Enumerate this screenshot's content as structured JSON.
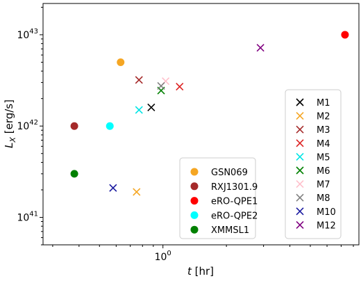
{
  "chart_data": {
    "type": "scatter",
    "title": "",
    "xlabel": "t [hr]",
    "ylabel": "L_X [erg/s]",
    "xscale": "log",
    "yscale": "log",
    "xlim": [
      0.27,
      8.5
    ],
    "ylim": [
      5e+40,
      2.2e+43
    ],
    "x_ticks": [
      {
        "value": 1,
        "label": "10^0"
      }
    ],
    "y_ticks": [
      {
        "value": 1e+41,
        "label": "10^41"
      },
      {
        "value": 1e+42,
        "label": "10^42"
      },
      {
        "value": 1e+43,
        "label": "10^43"
      }
    ],
    "grid": false,
    "observed_legend_placement": "lower-center",
    "model_legend_placement": "right",
    "series": [
      {
        "name": "GSN069",
        "marker": "circle",
        "color": "#f5a623",
        "x": [
          0.63
        ],
        "y": [
          5e+42
        ]
      },
      {
        "name": "RXJ1301.9",
        "marker": "circle",
        "color": "#a52a2a",
        "x": [
          0.38
        ],
        "y": [
          1e+42
        ]
      },
      {
        "name": "eRO-QPE1",
        "marker": "circle",
        "color": "#ff0000",
        "x": [
          7.3
        ],
        "y": [
          1e+43
        ]
      },
      {
        "name": "eRO-QPE2",
        "marker": "circle",
        "color": "#00ffff",
        "x": [
          0.56
        ],
        "y": [
          1e+42
        ]
      },
      {
        "name": "XMMSL1",
        "marker": "circle",
        "color": "#008000",
        "x": [
          0.38
        ],
        "y": [
          3e+41
        ]
      },
      {
        "name": "M1",
        "marker": "x",
        "color": "#000000",
        "x": [
          0.88
        ],
        "y": [
          1.6e+42
        ]
      },
      {
        "name": "M2",
        "marker": "x",
        "color": "#f5a623",
        "x": [
          0.75
        ],
        "y": [
          1.9e+41
        ]
      },
      {
        "name": "M3",
        "marker": "x",
        "color": "#a52a2a",
        "x": [
          0.77
        ],
        "y": [
          3.2e+42
        ]
      },
      {
        "name": "M4",
        "marker": "x",
        "color": "#dd2222",
        "x": [
          1.2
        ],
        "y": [
          2.7e+42
        ]
      },
      {
        "name": "M5",
        "marker": "x",
        "color": "#00e5e5",
        "x": [
          0.77
        ],
        "y": [
          1.5e+42
        ]
      },
      {
        "name": "M6",
        "marker": "x",
        "color": "#008000",
        "x": [
          0.98
        ],
        "y": [
          2.45e+42
        ]
      },
      {
        "name": "M7",
        "marker": "x",
        "color": "#ffc0cb",
        "x": [
          1.03
        ],
        "y": [
          3.1e+42
        ]
      },
      {
        "name": "M8",
        "marker": "x",
        "color": "#808080",
        "x": [
          0.98
        ],
        "y": [
          2.75e+42
        ]
      },
      {
        "name": "M10",
        "marker": "x",
        "color": "#1a1aa0",
        "x": [
          0.58
        ],
        "y": [
          2.1e+41
        ]
      },
      {
        "name": "M12",
        "marker": "x",
        "color": "#800080",
        "x": [
          2.9
        ],
        "y": [
          7.2e+42
        ]
      }
    ]
  }
}
